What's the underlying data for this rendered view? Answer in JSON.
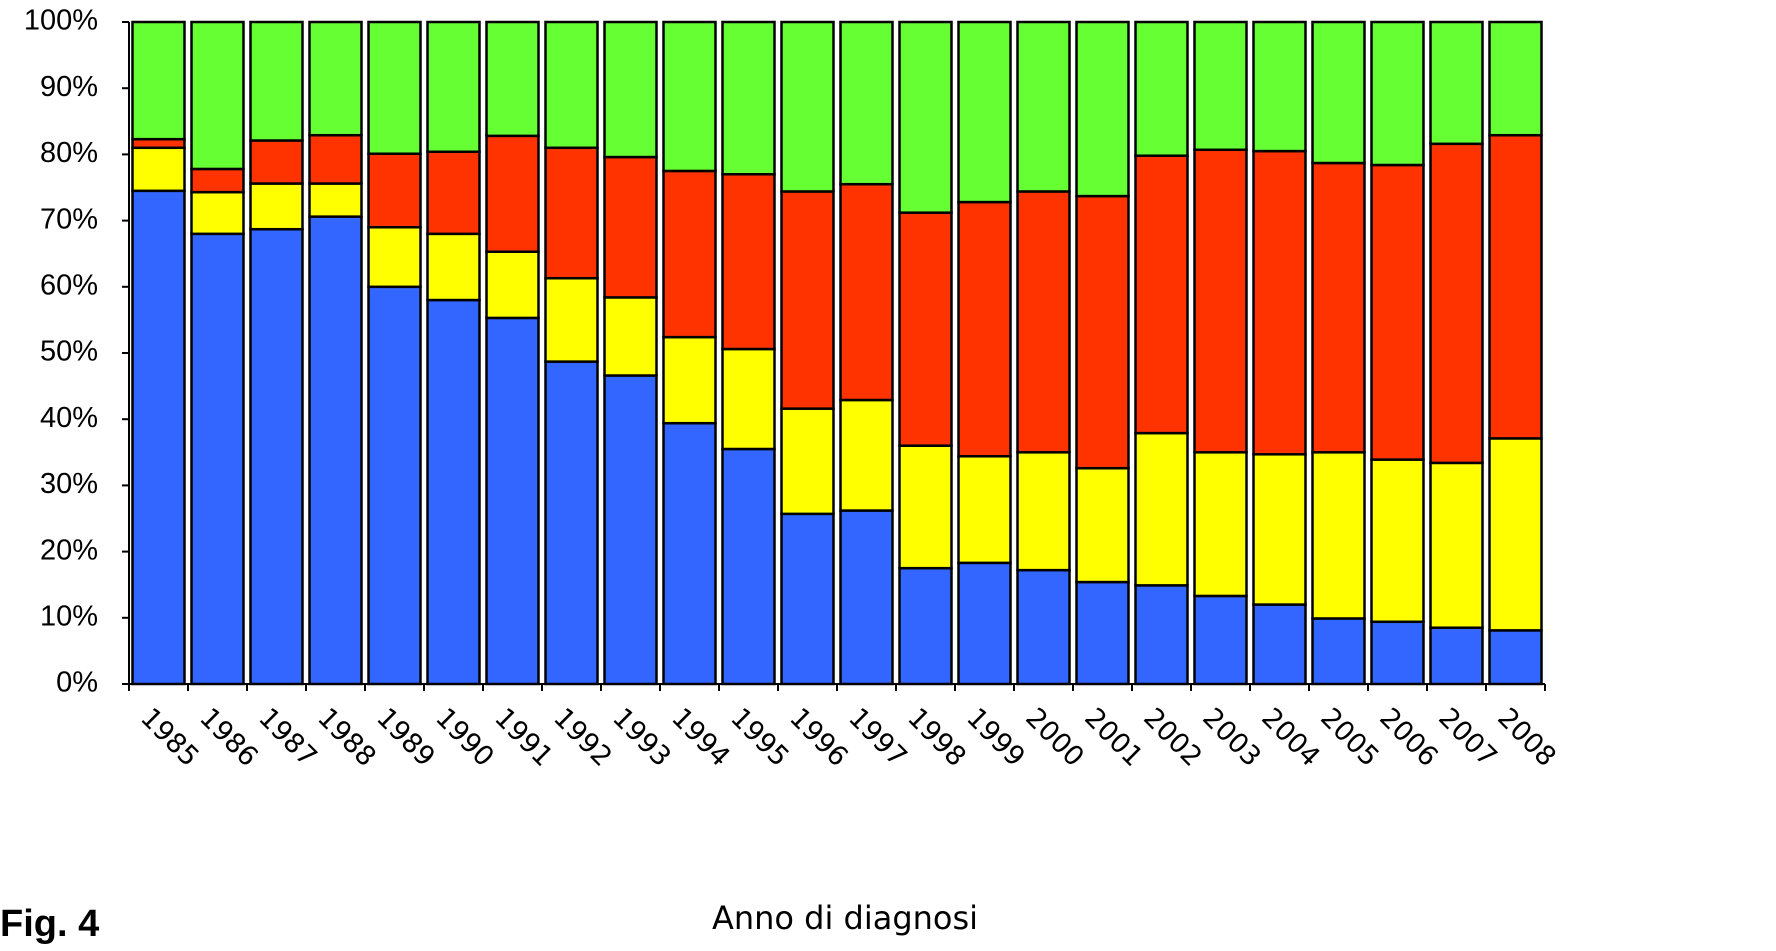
{
  "chart_data": {
    "type": "stacked_bar",
    "label": "Fig. 4",
    "x_label": "Anno di diagnosi",
    "categories": [
      "1985",
      "1986",
      "1987",
      "1988",
      "1989",
      "1990",
      "1991",
      "1992",
      "1993",
      "1994",
      "1995",
      "1996",
      "1997",
      "1998",
      "1999",
      "2000",
      "2001",
      "2002",
      "2003",
      "2004",
      "2005",
      "2006",
      "2007",
      "2008"
    ],
    "series": [
      {
        "color": "#3366ff",
        "values": [
          74.5,
          68,
          68.7,
          70.6,
          60,
          58,
          55.3,
          48.7,
          46.6,
          39.4,
          35.5,
          25.7,
          26.2,
          17.5,
          18.3,
          17.2,
          15.4,
          14.9,
          13.3,
          12,
          9.9,
          9.4,
          8.5,
          8.1
        ]
      },
      {
        "color": "#ffff00",
        "values": [
          6.5,
          6.3,
          6.9,
          5,
          9,
          10,
          10,
          12.6,
          11.8,
          13,
          15.1,
          15.9,
          16.7,
          18.5,
          16.1,
          17.8,
          17.2,
          23,
          21.7,
          22.7,
          25.1,
          24.5,
          24.9,
          29
        ]
      },
      {
        "color": "#ff3300",
        "values": [
          1.3,
          3.5,
          6.5,
          7.3,
          11.1,
          12.4,
          17.5,
          19.7,
          21.2,
          25.1,
          26.4,
          32.8,
          32.6,
          35.2,
          38.4,
          39.4,
          41.1,
          41.9,
          45.7,
          45.8,
          43.7,
          44.5,
          48.2,
          45.8
        ]
      },
      {
        "color": "#66ff33",
        "values": [
          17.7,
          22.2,
          17.9,
          17.1,
          19.9,
          19.6,
          17.2,
          19,
          20.4,
          22.5,
          23,
          25.6,
          24.5,
          28.8,
          27.2,
          25.6,
          26.3,
          20.2,
          19.3,
          19.5,
          21.3,
          21.6,
          18.4,
          17.1
        ]
      }
    ],
    "ylim": [
      0,
      100
    ],
    "yticks": [
      {
        "value": 0,
        "label": "0%"
      },
      {
        "value": 10,
        "label": "10%"
      },
      {
        "value": 20,
        "label": "20%"
      },
      {
        "value": 30,
        "label": "30%"
      },
      {
        "value": 40,
        "label": "40%"
      },
      {
        "value": 50,
        "label": "50%"
      },
      {
        "value": 60,
        "label": "60%"
      },
      {
        "value": 70,
        "label": "70%"
      },
      {
        "value": 80,
        "label": "80%"
      },
      {
        "value": 90,
        "label": "90%"
      },
      {
        "value": 100,
        "label": "100%"
      }
    ]
  }
}
